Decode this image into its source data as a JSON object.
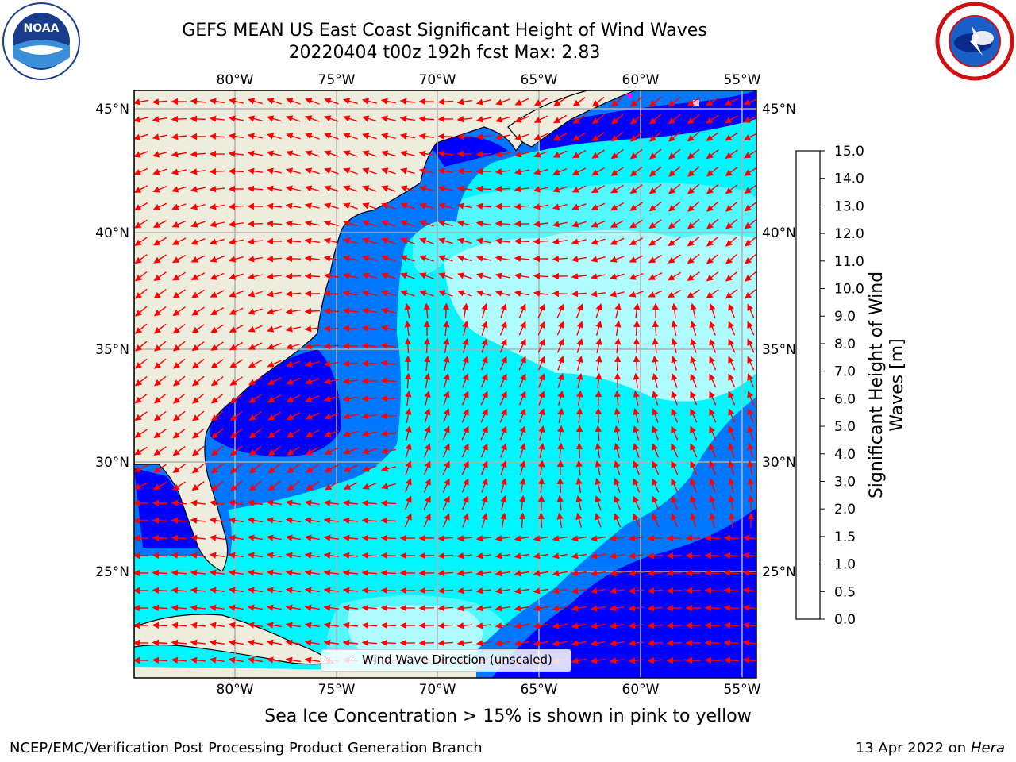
{
  "header": {
    "title_line1": "GEFS MEAN US East Coast Significant Height of Wind Waves",
    "title_line2": "20220404 t00z 192h fcst   Max: 2.83"
  },
  "logos": {
    "left": {
      "name": "noaa-logo",
      "text": "NOAA"
    },
    "right": {
      "name": "nws-logo"
    }
  },
  "map": {
    "lon_labels": [
      "80°W",
      "75°W",
      "70°W",
      "65°W",
      "60°W",
      "55°W"
    ],
    "lat_labels": [
      "45°N",
      "40°N",
      "35°N",
      "30°N",
      "25°N"
    ],
    "ocean_colors": {
      "deep_blue": "#0000ff",
      "blue": "#0077ff",
      "cyan": "#00f6ff",
      "light_cyan": "#55f7ff",
      "pale_cyan": "#aefcff"
    },
    "land_color": "#eeecdc",
    "arrow_color": "#ff0000",
    "legend_label": "Wind Wave Direction (unscaled)"
  },
  "colorbar": {
    "label_line1": "Significant Height of Wind",
    "label_line2": "Waves [m]",
    "ticks": [
      "0.0",
      "0.5",
      "1.0",
      "1.5",
      "2.0",
      "3.0",
      "4.0",
      "5.0",
      "6.0",
      "7.0",
      "8.0",
      "9.0",
      "10.0",
      "11.0",
      "12.0",
      "13.0",
      "14.0",
      "15.0"
    ],
    "colors": [
      "#0000ff",
      "#0077ff",
      "#00f6ff",
      "#55f7ff",
      "#aefcff",
      "#55f47a",
      "#00e400",
      "#22d600",
      "#88e000",
      "#c8f000",
      "#ffff00",
      "#ffee00",
      "#ffc800",
      "#ffa000",
      "#ff7800",
      "#ff5000",
      "#ff2000"
    ]
  },
  "bottom_note": "Sea Ice Concentration > 15% is shown in pink to yellow",
  "footer": {
    "left": "NCEP/EMC/Verification Post Processing Product Generation Branch",
    "right_date": "13 Apr 2022 on",
    "right_machine": "Hera"
  }
}
